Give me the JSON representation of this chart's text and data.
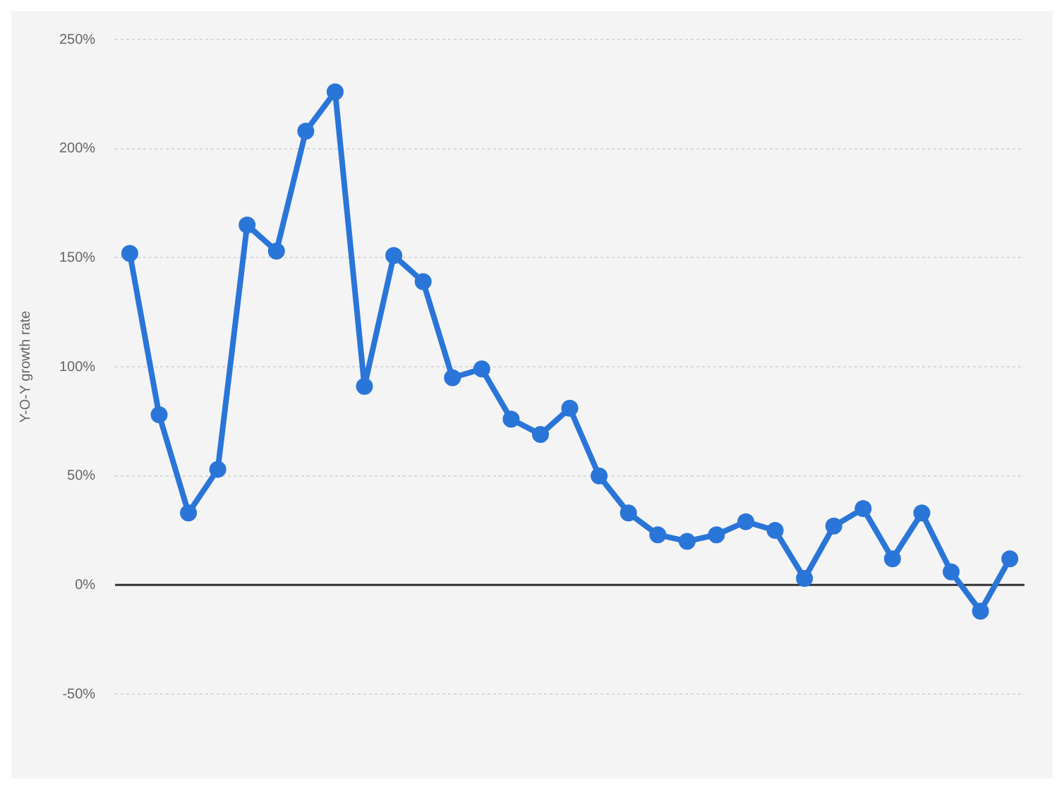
{
  "chart_data": {
    "type": "line",
    "ylabel": "Y-O-Y growth rate",
    "categories": [
      null,
      null,
      null,
      null,
      null,
      null,
      null,
      null,
      null,
      null,
      null,
      null,
      null,
      null,
      null,
      null,
      null,
      null,
      null,
      null,
      null,
      null,
      null,
      null,
      null,
      null,
      null,
      null,
      null,
      null,
      null
    ],
    "series": [
      {
        "color": "#2a75d8",
        "values": [
          152,
          78,
          33,
          53,
          165,
          153,
          208,
          226,
          91,
          151,
          139,
          95,
          99,
          76,
          69,
          81,
          50,
          33,
          23,
          20,
          23,
          29,
          25,
          3,
          27,
          35,
          12,
          33,
          6,
          -12,
          12
        ]
      }
    ],
    "ylim": [
      -50,
      250
    ],
    "yticks": [
      {
        "value": -50,
        "label": "-50%"
      },
      {
        "value": 0,
        "label": "0%"
      },
      {
        "value": 50,
        "label": "50%"
      },
      {
        "value": 100,
        "label": "100%"
      },
      {
        "value": 150,
        "label": "150%"
      },
      {
        "value": 200,
        "label": "200%"
      },
      {
        "value": 250,
        "label": "250%"
      }
    ],
    "ref_lines": [
      {
        "axis": "y",
        "value": 0,
        "color": "#333333"
      }
    ],
    "grid": "y",
    "legend": false,
    "tick_labels": "y",
    "marker": "circle",
    "line_style": "solid"
  }
}
